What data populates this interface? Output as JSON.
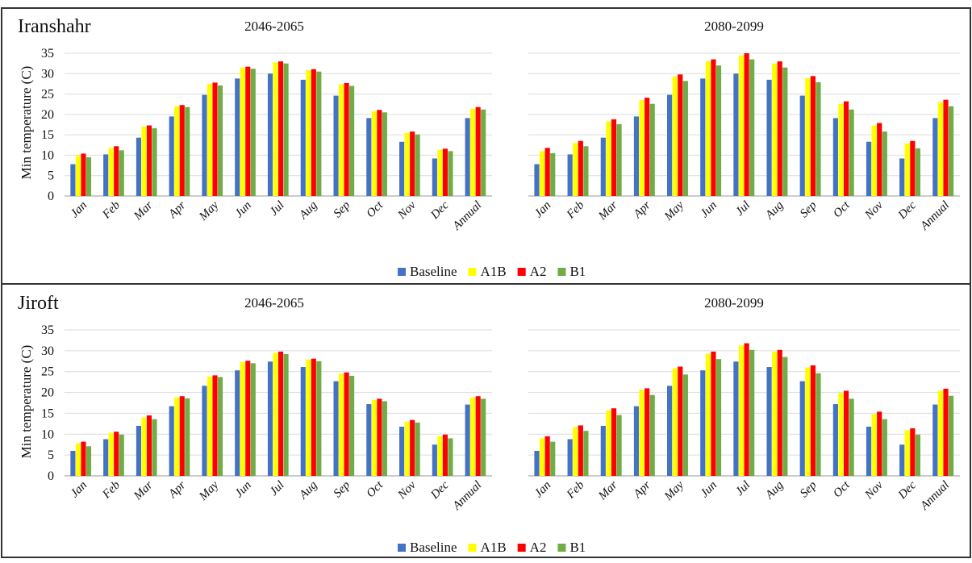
{
  "legend": [
    {
      "name": "Baseline",
      "color": "#4472C4"
    },
    {
      "name": "A1B",
      "color": "#FFFF00"
    },
    {
      "name": "A2",
      "color": "#FF0000"
    },
    {
      "name": "B1",
      "color": "#70AD47"
    }
  ],
  "categories": [
    "Jan",
    "Feb",
    "Mar",
    "Apr",
    "May",
    "Jun",
    "Jul",
    "Aug",
    "Sep",
    "Oct",
    "Nov",
    "Dec",
    "Annual"
  ],
  "chart_data": [
    {
      "type": "bar",
      "region": "Iranshahr",
      "title": "2046-2065",
      "ylabel": "Min temperature (C)",
      "ylim": [
        0,
        35
      ],
      "yticks": [
        0,
        5,
        10,
        15,
        20,
        25,
        30,
        35
      ],
      "categories": [
        "Jan",
        "Feb",
        "Mar",
        "Apr",
        "May",
        "Jun",
        "Jul",
        "Aug",
        "Sep",
        "Oct",
        "Nov",
        "Dec",
        "Annual"
      ],
      "series": [
        {
          "name": "Baseline",
          "values": [
            7.8,
            10.2,
            14.3,
            19.5,
            24.8,
            28.8,
            30.0,
            28.5,
            24.6,
            19.1,
            13.3,
            9.2,
            19.1
          ]
        },
        {
          "name": "A1B",
          "values": [
            10.0,
            11.8,
            17.0,
            22.0,
            27.5,
            31.5,
            32.8,
            30.8,
            27.4,
            20.8,
            15.5,
            11.3,
            21.4
          ]
        },
        {
          "name": "A2",
          "values": [
            10.4,
            12.2,
            17.3,
            22.3,
            27.8,
            31.7,
            33.0,
            31.1,
            27.7,
            21.1,
            15.8,
            11.6,
            21.8
          ]
        },
        {
          "name": "B1",
          "values": [
            9.5,
            11.2,
            16.6,
            21.8,
            27.1,
            31.2,
            32.5,
            30.5,
            27.0,
            20.5,
            15.1,
            11.0,
            21.2
          ]
        }
      ],
      "legend": "bottom",
      "grid": true
    },
    {
      "type": "bar",
      "region": "",
      "title": "2080-2099",
      "ylabel": "",
      "ylim": [
        0,
        35
      ],
      "yticks": [],
      "categories": [
        "Jan",
        "Feb",
        "Mar",
        "Apr",
        "May",
        "Jun",
        "Jul",
        "Aug",
        "Sep",
        "Oct",
        "Nov",
        "Dec",
        "Annual"
      ],
      "series": [
        {
          "name": "Baseline",
          "values": [
            7.8,
            10.2,
            14.3,
            19.5,
            24.8,
            28.8,
            30.0,
            28.5,
            24.6,
            19.1,
            13.3,
            9.2,
            19.1
          ]
        },
        {
          "name": "A1B",
          "values": [
            11.0,
            13.0,
            18.3,
            23.5,
            29.3,
            33.0,
            34.5,
            32.5,
            28.9,
            22.6,
            17.3,
            12.9,
            23.0
          ]
        },
        {
          "name": "A2",
          "values": [
            11.8,
            13.5,
            18.8,
            24.1,
            29.8,
            33.5,
            35.0,
            33.0,
            29.4,
            23.2,
            17.9,
            13.5,
            23.6
          ]
        },
        {
          "name": "B1",
          "values": [
            10.5,
            12.2,
            17.6,
            22.6,
            28.2,
            32.0,
            33.5,
            31.5,
            27.9,
            21.2,
            15.8,
            11.7,
            22.0
          ]
        }
      ],
      "legend": "bottom",
      "grid": true
    },
    {
      "type": "bar",
      "region": "Jiroft",
      "title": "2046-2065",
      "ylabel": "Min temperature (C)",
      "ylim": [
        0,
        35
      ],
      "yticks": [
        0,
        5,
        10,
        15,
        20,
        25,
        30,
        35
      ],
      "categories": [
        "Jan",
        "Feb",
        "Mar",
        "Apr",
        "May",
        "Jun",
        "Jul",
        "Aug",
        "Sep",
        "Oct",
        "Nov",
        "Dec",
        "Annual"
      ],
      "series": [
        {
          "name": "Baseline",
          "values": [
            6.0,
            8.8,
            12.0,
            16.7,
            21.6,
            25.3,
            27.4,
            26.1,
            22.7,
            17.2,
            11.8,
            7.5,
            17.1
          ]
        },
        {
          "name": "A1B",
          "values": [
            7.8,
            10.3,
            14.0,
            18.8,
            23.8,
            27.3,
            29.5,
            27.9,
            24.5,
            18.2,
            13.0,
            9.5,
            18.8
          ]
        },
        {
          "name": "A2",
          "values": [
            8.2,
            10.6,
            14.5,
            19.1,
            24.1,
            27.6,
            29.8,
            28.1,
            24.8,
            18.5,
            13.4,
            9.9,
            19.1
          ]
        },
        {
          "name": "B1",
          "values": [
            7.1,
            9.9,
            13.6,
            18.6,
            23.7,
            27.0,
            29.2,
            27.5,
            24.0,
            17.9,
            12.8,
            9.0,
            18.5
          ]
        }
      ],
      "legend": "bottom",
      "grid": true
    },
    {
      "type": "bar",
      "region": "",
      "title": "2080-2099",
      "ylabel": "",
      "ylim": [
        0,
        35
      ],
      "yticks": [],
      "categories": [
        "Jan",
        "Feb",
        "Mar",
        "Apr",
        "May",
        "Jun",
        "Jul",
        "Aug",
        "Sep",
        "Oct",
        "Nov",
        "Dec",
        "Annual"
      ],
      "series": [
        {
          "name": "Baseline",
          "values": [
            6.0,
            8.8,
            12.0,
            16.7,
            21.6,
            25.3,
            27.4,
            26.1,
            22.7,
            17.2,
            11.8,
            7.5,
            17.1
          ]
        },
        {
          "name": "A1B",
          "values": [
            9.0,
            11.7,
            15.7,
            20.6,
            25.8,
            29.3,
            31.3,
            29.8,
            26.0,
            19.9,
            14.8,
            10.9,
            20.4
          ]
        },
        {
          "name": "A2",
          "values": [
            9.5,
            12.1,
            16.2,
            21.0,
            26.2,
            29.8,
            31.8,
            30.2,
            26.5,
            20.4,
            15.4,
            11.4,
            20.9
          ]
        },
        {
          "name": "B1",
          "values": [
            8.2,
            10.8,
            14.6,
            19.4,
            24.3,
            28.0,
            30.2,
            28.5,
            24.6,
            18.5,
            13.6,
            9.9,
            19.2
          ]
        }
      ],
      "legend": "bottom",
      "grid": true
    }
  ]
}
